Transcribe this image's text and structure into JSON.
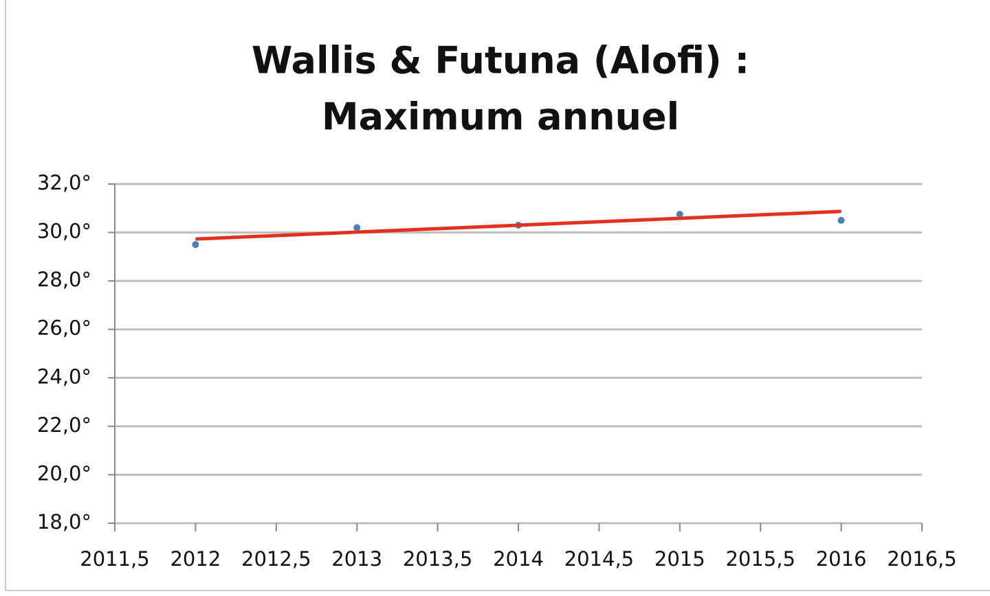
{
  "chart_data": {
    "type": "scatter",
    "title": [
      "Wallis & Futuna (Alofi) :",
      "Maximum annuel"
    ],
    "x": [
      2012,
      2013,
      2014,
      2015,
      2016
    ],
    "series": [
      {
        "color": "#4a7ebb",
        "values": [
          29.5,
          30.2,
          30.3,
          30.75,
          30.5
        ]
      }
    ],
    "trendline": {
      "color": "#e2321f",
      "x": [
        2012,
        2016
      ],
      "values": [
        29.73,
        30.87
      ]
    },
    "xlim": [
      2011.5,
      2016.5
    ],
    "xticks": [
      {
        "value": 2011.5,
        "label": "2011,5"
      },
      2012,
      {
        "value": 2012.5,
        "label": "2012,5"
      },
      2013,
      {
        "value": 2013.5,
        "label": "2013,5"
      },
      2014,
      {
        "value": 2014.5,
        "label": "2014,5"
      },
      2015,
      {
        "value": 2015.5,
        "label": "2015,5"
      },
      2016,
      {
        "value": 2016.5,
        "label": "2016,5"
      }
    ],
    "ylim": [
      18,
      32
    ],
    "yticks": [
      {
        "value": 18,
        "label": "18,0°"
      },
      {
        "value": 20,
        "label": "20,0°"
      },
      {
        "value": 22,
        "label": "22,0°"
      },
      {
        "value": 24,
        "label": "24,0°"
      },
      {
        "value": 26,
        "label": "26,0°"
      },
      {
        "value": 28,
        "label": "28,0°"
      },
      {
        "value": 30,
        "label": "30,0°"
      },
      {
        "value": 32,
        "label": "32,0°"
      }
    ],
    "grid": true
  }
}
